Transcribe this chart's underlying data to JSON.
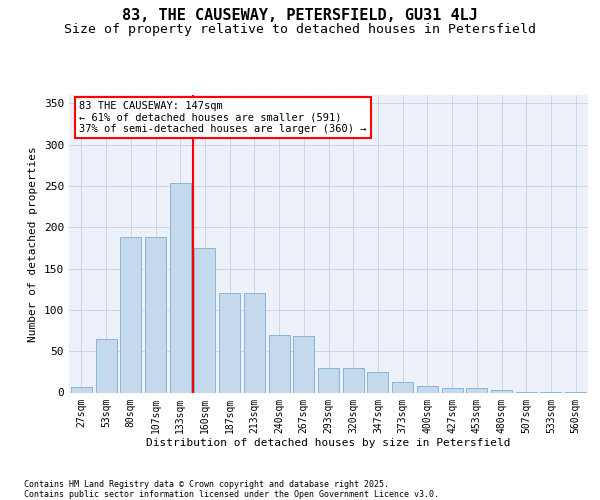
{
  "title": "83, THE CAUSEWAY, PETERSFIELD, GU31 4LJ",
  "subtitle": "Size of property relative to detached houses in Petersfield",
  "xlabel": "Distribution of detached houses by size in Petersfield",
  "ylabel": "Number of detached properties",
  "categories": [
    "27sqm",
    "53sqm",
    "80sqm",
    "107sqm",
    "133sqm",
    "160sqm",
    "187sqm",
    "213sqm",
    "240sqm",
    "267sqm",
    "293sqm",
    "320sqm",
    "347sqm",
    "373sqm",
    "400sqm",
    "427sqm",
    "453sqm",
    "480sqm",
    "507sqm",
    "533sqm",
    "560sqm"
  ],
  "bar_values": [
    7,
    65,
    188,
    188,
    253,
    175,
    120,
    120,
    70,
    68,
    30,
    30,
    25,
    13,
    8,
    5,
    5,
    3,
    1,
    1,
    1
  ],
  "bar_color": "#c5d9ed",
  "bar_edge_color": "#7bafd4",
  "vline_x_index": 4.5,
  "vline_color": "red",
  "annotation_text": "83 THE CAUSEWAY: 147sqm\n← 61% of detached houses are smaller (591)\n37% of semi-detached houses are larger (360) →",
  "ylim": [
    0,
    360
  ],
  "yticks": [
    0,
    50,
    100,
    150,
    200,
    250,
    300,
    350
  ],
  "bg_color": "#edf1fa",
  "grid_color": "#c8d0e8",
  "footer": "Contains HM Land Registry data © Crown copyright and database right 2025.\nContains public sector information licensed under the Open Government Licence v3.0.",
  "title_fontsize": 11,
  "subtitle_fontsize": 9.5,
  "axis_label_fontsize": 8,
  "tick_fontsize": 7,
  "footer_fontsize": 6
}
